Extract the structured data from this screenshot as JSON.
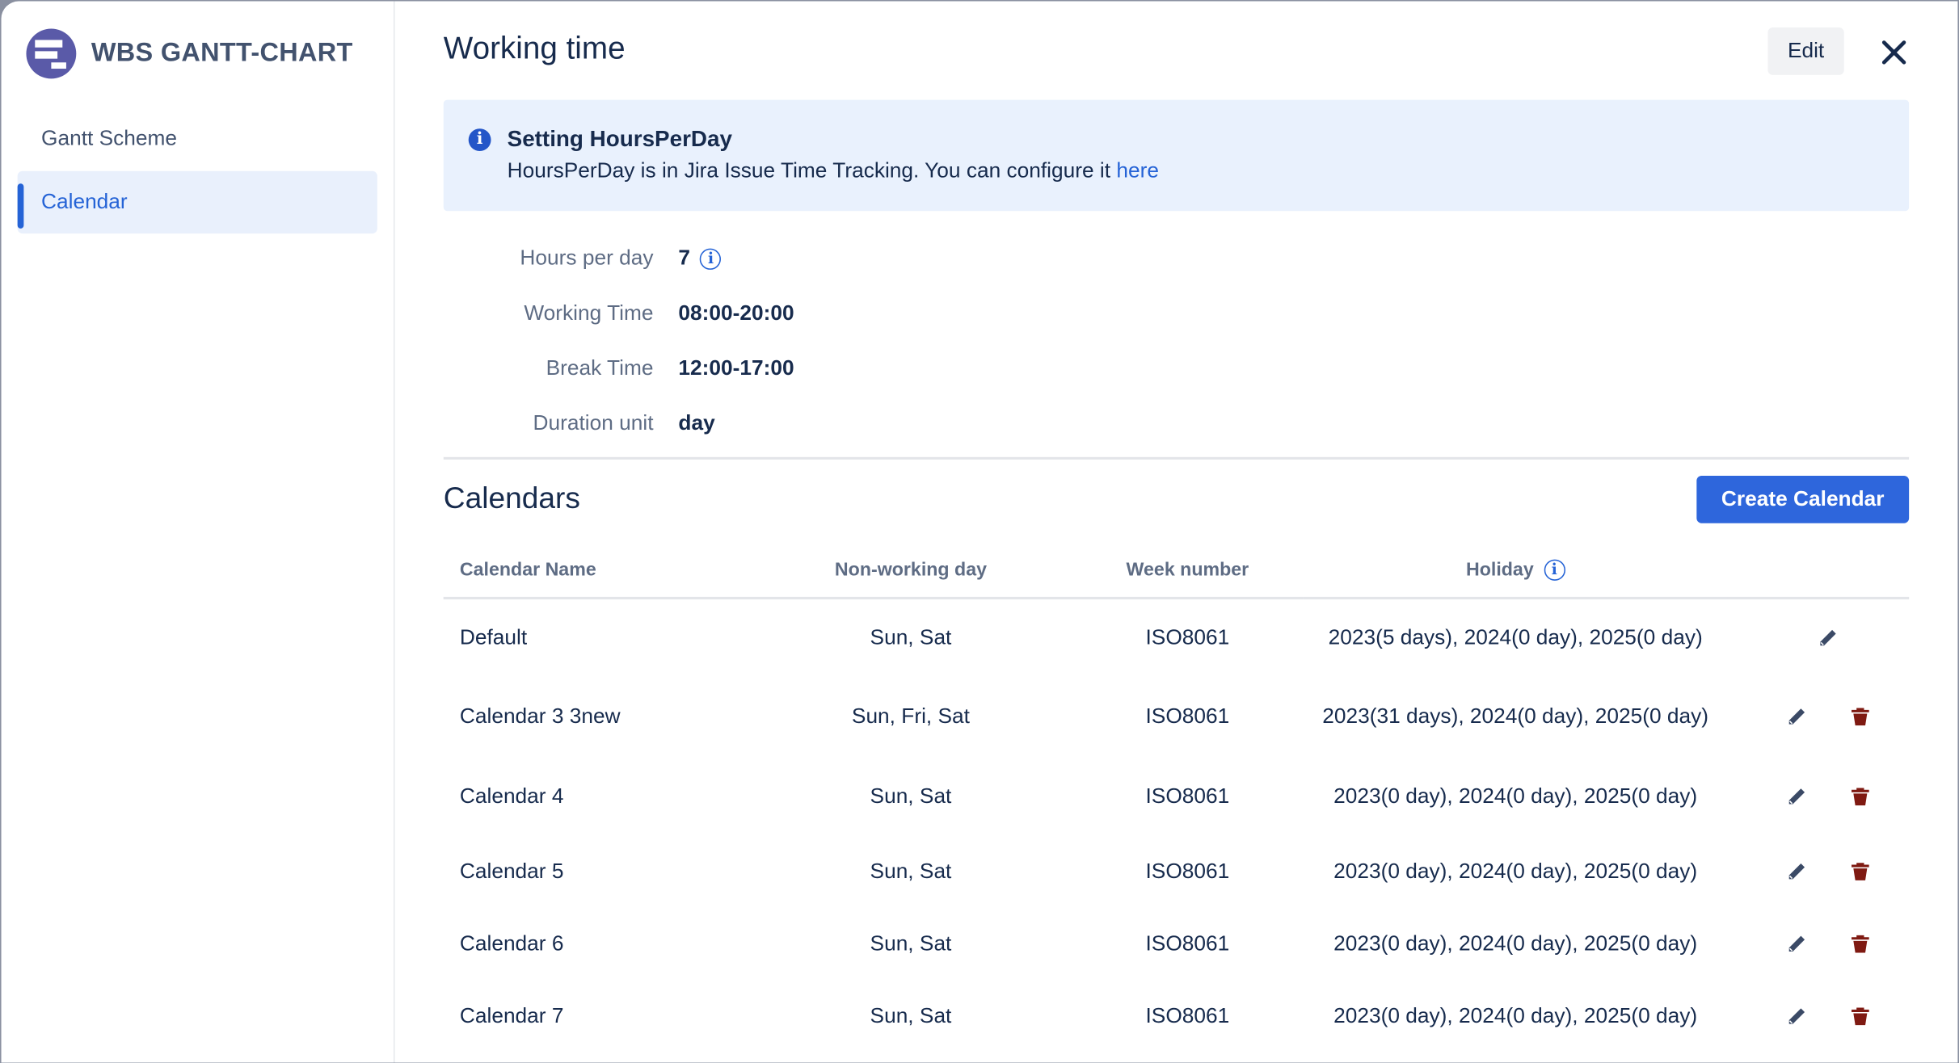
{
  "app": {
    "title": "WBS GANTT-CHART"
  },
  "sidebar": {
    "items": [
      {
        "label": "Gantt Scheme",
        "selected": false
      },
      {
        "label": "Calendar",
        "selected": true
      }
    ]
  },
  "header": {
    "title": "Working time",
    "edit_label": "Edit",
    "close_icon": "close-icon"
  },
  "info": {
    "title": "Setting HoursPerDay",
    "text": "HoursPerDay is in Jira Issue Time Tracking. You can configure it ",
    "link": "here"
  },
  "fields": [
    {
      "label": "Hours per day",
      "value": "7"
    },
    {
      "label": "Working Time",
      "value": "08:00-20:00"
    },
    {
      "label": "Break Time",
      "value": "12:00-17:00"
    },
    {
      "label": "Duration unit",
      "value": "day"
    }
  ],
  "calendars": {
    "title": "Calendars",
    "create_label": "Create Calendar",
    "columns": [
      "Calendar Name",
      "Non-working day",
      "Week number",
      "Holiday"
    ],
    "rows": [
      {
        "name": "Default",
        "nonworking": "Sun, Sat",
        "week": "ISO8061",
        "holiday": "2023(5 days), 2024(0 day), 2025(0 day)",
        "deletable": false
      },
      {
        "name": "Calendar 3 3new",
        "nonworking": "Sun, Fri, Sat",
        "week": "ISO8061",
        "holiday": "2023(31 days), 2024(0 day), 2025(0 day)",
        "deletable": true
      },
      {
        "name": "Calendar 4",
        "nonworking": "Sun, Sat",
        "week": "ISO8061",
        "holiday": "2023(0 day), 2024(0 day), 2025(0 day)",
        "deletable": true
      },
      {
        "name": "Calendar 5",
        "nonworking": "Sun, Sat",
        "week": "ISO8061",
        "holiday": "2023(0 day), 2024(0 day), 2025(0 day)",
        "deletable": true
      },
      {
        "name": "Calendar 6",
        "nonworking": "Sun, Sat",
        "week": "ISO8061",
        "holiday": "2023(0 day), 2024(0 day), 2025(0 day)",
        "deletable": true
      },
      {
        "name": "Calendar 7",
        "nonworking": "Sun, Sat",
        "week": "ISO8061",
        "holiday": "2023(0 day), 2024(0 day), 2025(0 day)",
        "deletable": true
      }
    ]
  },
  "colors": {
    "accent": "#2e66dc",
    "delete": "#7f1a12",
    "edit": "#3b4a66"
  }
}
